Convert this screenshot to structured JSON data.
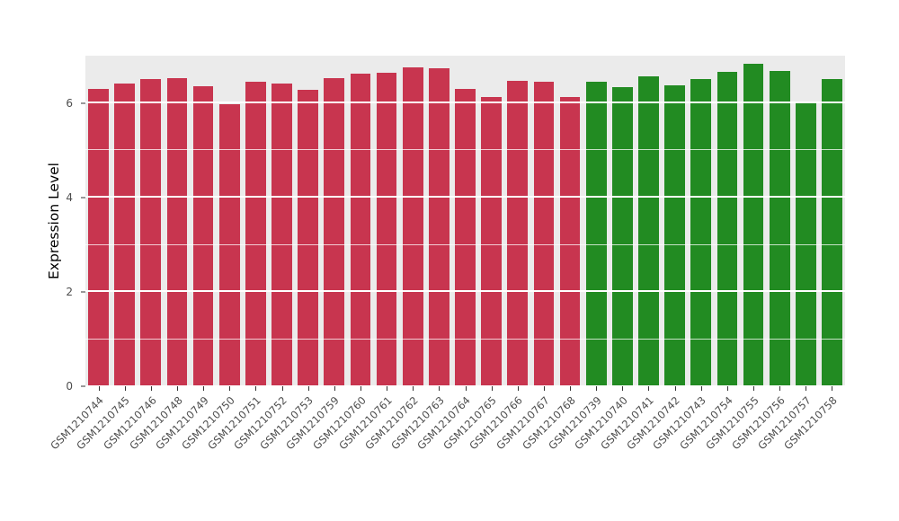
{
  "chart_data": {
    "type": "bar",
    "title": "",
    "xlabel": "",
    "ylabel": "Expression Level",
    "ylim": [
      0,
      7
    ],
    "yticks": [
      0,
      2,
      4,
      6
    ],
    "yticks_minor": [
      1,
      3,
      5
    ],
    "grid": "on",
    "legend": "none",
    "panel_background": "#EBEBEB",
    "gridline_color": "#FFFFFF",
    "colors": {
      "red": "#C8354F",
      "green": "#228B22"
    },
    "bars": [
      {
        "label": "GSM1210744",
        "value": 6.3,
        "group": "red"
      },
      {
        "label": "GSM1210745",
        "value": 6.42,
        "group": "red"
      },
      {
        "label": "GSM1210746",
        "value": 6.5,
        "group": "red"
      },
      {
        "label": "GSM1210748",
        "value": 6.53,
        "group": "red"
      },
      {
        "label": "GSM1210749",
        "value": 6.35,
        "group": "red"
      },
      {
        "label": "GSM1210750",
        "value": 5.98,
        "group": "red"
      },
      {
        "label": "GSM1210751",
        "value": 6.45,
        "group": "red"
      },
      {
        "label": "GSM1210752",
        "value": 6.42,
        "group": "red"
      },
      {
        "label": "GSM1210753",
        "value": 6.27,
        "group": "red"
      },
      {
        "label": "GSM1210759",
        "value": 6.53,
        "group": "red"
      },
      {
        "label": "GSM1210760",
        "value": 6.62,
        "group": "red"
      },
      {
        "label": "GSM1210761",
        "value": 6.63,
        "group": "red"
      },
      {
        "label": "GSM1210762",
        "value": 6.76,
        "group": "red"
      },
      {
        "label": "GSM1210763",
        "value": 6.73,
        "group": "red"
      },
      {
        "label": "GSM1210764",
        "value": 6.3,
        "group": "red"
      },
      {
        "label": "GSM1210765",
        "value": 6.12,
        "group": "red"
      },
      {
        "label": "GSM1210766",
        "value": 6.47,
        "group": "red"
      },
      {
        "label": "GSM1210767",
        "value": 6.45,
        "group": "red"
      },
      {
        "label": "GSM1210768",
        "value": 6.12,
        "group": "red"
      },
      {
        "label": "GSM1210739",
        "value": 6.45,
        "group": "green"
      },
      {
        "label": "GSM1210740",
        "value": 6.33,
        "group": "green"
      },
      {
        "label": "GSM1210741",
        "value": 6.57,
        "group": "green"
      },
      {
        "label": "GSM1210742",
        "value": 6.38,
        "group": "green"
      },
      {
        "label": "GSM1210743",
        "value": 6.5,
        "group": "green"
      },
      {
        "label": "GSM1210754",
        "value": 6.65,
        "group": "green"
      },
      {
        "label": "GSM1210755",
        "value": 6.83,
        "group": "green"
      },
      {
        "label": "GSM1210756",
        "value": 6.68,
        "group": "green"
      },
      {
        "label": "GSM1210757",
        "value": 6.02,
        "group": "green"
      },
      {
        "label": "GSM1210758",
        "value": 6.5,
        "group": "green"
      }
    ]
  }
}
